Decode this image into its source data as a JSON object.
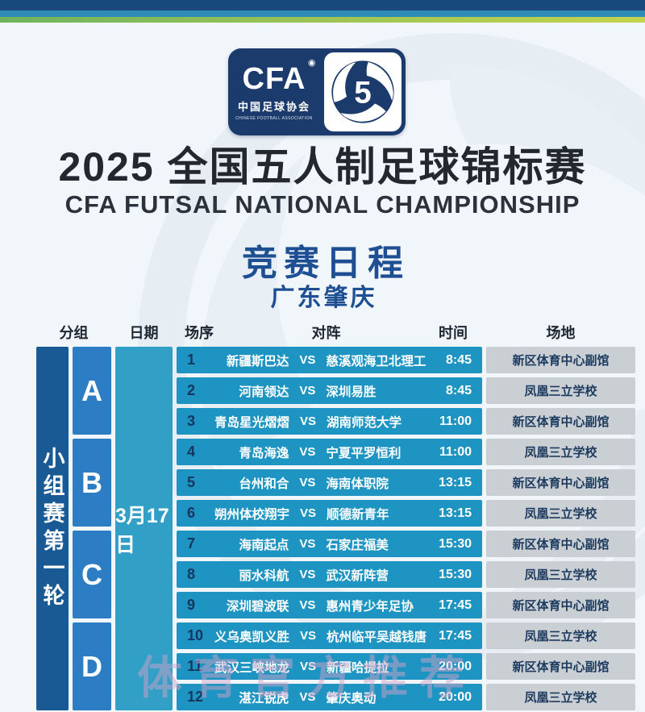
{
  "colors": {
    "stripe-navy": "#1a4a7d",
    "stripe-blue": "#2e8cb6",
    "logo-navy": "#1c3b6d",
    "title-color": "#23282e",
    "subtitle-color": "#2b323c",
    "accent-navy": "#1d4f92",
    "round-bg": "#1a5a94",
    "group-bg": "#2c7dc3",
    "date-bg": "#319fc6",
    "match-bg": "#1e94c2",
    "venue-bg": "#cacfd4",
    "venue-text": "#1c3a5e",
    "number-color": "#16365f",
    "header-text": "#1d2630"
  },
  "logo": {
    "cfa": "CFA",
    "cfa_cn": "中国足球协会",
    "cfa_en": "CHINESE FOOTBALL ASSOCIATION",
    "swirl_number": "5"
  },
  "header": {
    "title_cn": "2025 全国五人制足球锦标赛",
    "title_en": "CFA FUTSAL NATIONAL CHAMPIONSHIP",
    "schedule_title": "竞赛日程",
    "location": "广东肇庆"
  },
  "table": {
    "column_headers": {
      "group": "分组",
      "date": "日期",
      "order": "场序",
      "matchup": "对阵",
      "time": "时间",
      "venue": "场地"
    },
    "round_label": "小组赛第一轮",
    "date": "3月17日",
    "vs_label": "VS",
    "groups": [
      {
        "label": "A",
        "matches": [
          {
            "no": "1",
            "home": "新疆斯巴达",
            "away": "慈溪观海卫北理工",
            "time": "8:45",
            "venue": "新区体育中心副馆"
          },
          {
            "no": "2",
            "home": "河南领达",
            "away": "深圳易胜",
            "time": "8:45",
            "venue": "凤凰三立学校"
          },
          {
            "no": "3",
            "home": "青岛星光熠熠",
            "away": "湖南师范大学",
            "time": "11:00",
            "venue": "新区体育中心副馆"
          }
        ]
      },
      {
        "label": "B",
        "matches": [
          {
            "no": "4",
            "home": "青岛海逸",
            "away": "宁夏平罗恒利",
            "time": "11:00",
            "venue": "凤凰三立学校"
          },
          {
            "no": "5",
            "home": "台州和合",
            "away": "海南体职院",
            "time": "13:15",
            "venue": "新区体育中心副馆"
          },
          {
            "no": "6",
            "home": "朔州体校翔宇",
            "away": "顺德新青年",
            "time": "13:15",
            "venue": "凤凰三立学校"
          }
        ]
      },
      {
        "label": "C",
        "matches": [
          {
            "no": "7",
            "home": "海南起点",
            "away": "石家庄福美",
            "time": "15:30",
            "venue": "新区体育中心副馆"
          },
          {
            "no": "8",
            "home": "丽水科航",
            "away": "武汉新阵营",
            "time": "15:30",
            "venue": "凤凰三立学校"
          },
          {
            "no": "9",
            "home": "深圳碧波联",
            "away": "惠州青少年足协",
            "time": "17:45",
            "venue": "新区体育中心副馆"
          }
        ]
      },
      {
        "label": "D",
        "matches": [
          {
            "no": "10",
            "home": "义乌奥凯义胜",
            "away": "杭州临平吴越钱唐",
            "time": "17:45",
            "venue": "凤凰三立学校"
          },
          {
            "no": "11",
            "home": "武汉三峡地龙",
            "away": "新疆哈提拉",
            "time": "20:00",
            "venue": "新区体育中心副馆"
          },
          {
            "no": "12",
            "home": "湛江锐虎",
            "away": "肇庆奥动",
            "time": "20:00",
            "venue": "凤凰三立学校"
          }
        ]
      }
    ]
  },
  "watermark": "体育官方推荐"
}
